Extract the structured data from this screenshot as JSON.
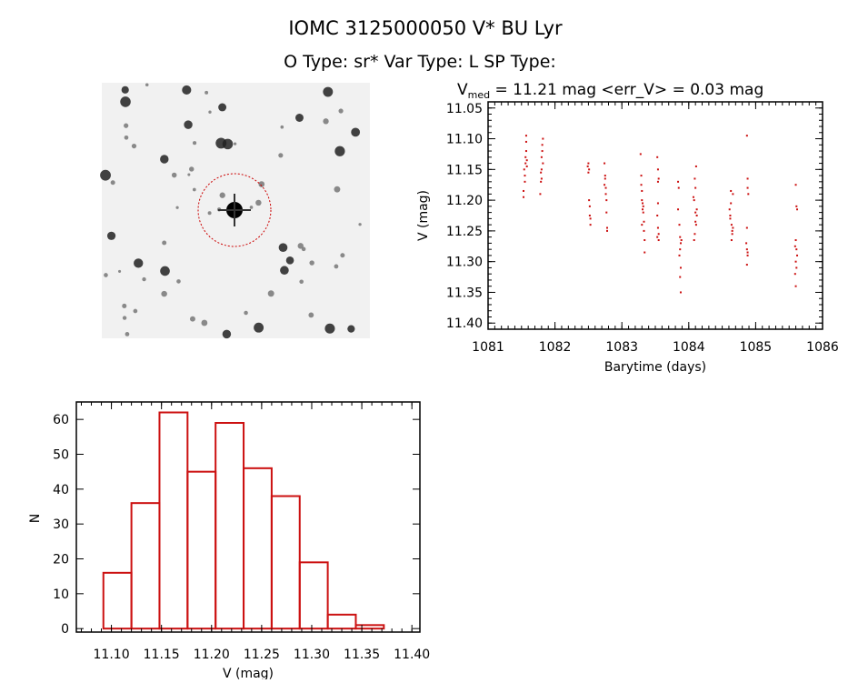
{
  "header": {
    "title": "IOMC 3125000050   V* BU Lyr",
    "subtitle": "O Type: sr*  Var Type: L  SP Type:"
  },
  "image_panel": {
    "marker_color": "#cc0000"
  },
  "chart_data": [
    {
      "type": "scatter",
      "title_main": "V",
      "title_sub": "med",
      "title_rest": " = 11.21 mag <err_V> = 0.03 mag",
      "xlabel": "Barytime (days)",
      "ylabel": "V (mag)",
      "xlim": [
        1081,
        1086
      ],
      "ylim": [
        11.41,
        11.04
      ],
      "y_reversed": true,
      "xticks": [
        "1081",
        "1082",
        "1083",
        "1084",
        "1085",
        "1086"
      ],
      "yticks": [
        "11.05",
        "11.10",
        "11.15",
        "11.20",
        "11.25",
        "11.30",
        "11.35",
        "11.40"
      ],
      "color": "#cc1111",
      "points": [
        [
          1081.53,
          11.195
        ],
        [
          1081.53,
          11.185
        ],
        [
          1081.54,
          11.15
        ],
        [
          1081.55,
          11.16
        ],
        [
          1081.56,
          11.13
        ],
        [
          1081.56,
          11.14
        ],
        [
          1081.57,
          11.12
        ],
        [
          1081.57,
          11.095
        ],
        [
          1081.58,
          11.145
        ],
        [
          1081.58,
          11.135
        ],
        [
          1081.55,
          11.17
        ],
        [
          1081.57,
          11.105
        ],
        [
          1081.78,
          11.19
        ],
        [
          1081.79,
          11.17
        ],
        [
          1081.79,
          11.155
        ],
        [
          1081.8,
          11.15
        ],
        [
          1081.8,
          11.13
        ],
        [
          1081.81,
          11.12
        ],
        [
          1081.81,
          11.11
        ],
        [
          1081.82,
          11.1
        ],
        [
          1081.82,
          11.14
        ],
        [
          1081.8,
          11.165
        ],
        [
          1082.49,
          11.145
        ],
        [
          1082.5,
          11.14
        ],
        [
          1082.5,
          11.155
        ],
        [
          1082.51,
          11.2
        ],
        [
          1082.52,
          11.21
        ],
        [
          1082.52,
          11.225
        ],
        [
          1082.53,
          11.24
        ],
        [
          1082.53,
          11.23
        ],
        [
          1082.51,
          11.15
        ],
        [
          1082.74,
          11.14
        ],
        [
          1082.75,
          11.16
        ],
        [
          1082.75,
          11.165
        ],
        [
          1082.76,
          11.18
        ],
        [
          1082.76,
          11.19
        ],
        [
          1082.77,
          11.2
        ],
        [
          1082.77,
          11.22
        ],
        [
          1082.78,
          11.245
        ],
        [
          1082.78,
          11.25
        ],
        [
          1082.74,
          11.175
        ],
        [
          1083.28,
          11.125
        ],
        [
          1083.29,
          11.16
        ],
        [
          1083.29,
          11.175
        ],
        [
          1083.3,
          11.185
        ],
        [
          1083.3,
          11.2
        ],
        [
          1083.31,
          11.205
        ],
        [
          1083.31,
          11.215
        ],
        [
          1083.32,
          11.22
        ],
        [
          1083.32,
          11.21
        ],
        [
          1083.33,
          11.235
        ],
        [
          1083.33,
          11.25
        ],
        [
          1083.34,
          11.265
        ],
        [
          1083.34,
          11.285
        ],
        [
          1083.3,
          11.24
        ],
        [
          1083.53,
          11.13
        ],
        [
          1083.54,
          11.15
        ],
        [
          1083.54,
          11.17
        ],
        [
          1083.55,
          11.165
        ],
        [
          1083.54,
          11.205
        ],
        [
          1083.53,
          11.225
        ],
        [
          1083.54,
          11.245
        ],
        [
          1083.55,
          11.255
        ],
        [
          1083.55,
          11.265
        ],
        [
          1083.53,
          11.26
        ],
        [
          1083.84,
          11.17
        ],
        [
          1083.85,
          11.18
        ],
        [
          1083.84,
          11.215
        ],
        [
          1083.86,
          11.24
        ],
        [
          1083.87,
          11.26
        ],
        [
          1083.88,
          11.27
        ],
        [
          1083.87,
          11.28
        ],
        [
          1083.86,
          11.29
        ],
        [
          1083.88,
          11.31
        ],
        [
          1083.87,
          11.325
        ],
        [
          1083.88,
          11.35
        ],
        [
          1083.89,
          11.265
        ],
        [
          1084.07,
          11.195
        ],
        [
          1084.08,
          11.2
        ],
        [
          1084.09,
          11.165
        ],
        [
          1084.1,
          11.18
        ],
        [
          1084.1,
          11.22
        ],
        [
          1084.11,
          11.145
        ],
        [
          1084.12,
          11.215
        ],
        [
          1084.11,
          11.24
        ],
        [
          1084.09,
          11.255
        ],
        [
          1084.08,
          11.265
        ],
        [
          1084.12,
          11.225
        ],
        [
          1084.1,
          11.235
        ],
        [
          1084.61,
          11.215
        ],
        [
          1084.62,
          11.225
        ],
        [
          1084.62,
          11.23
        ],
        [
          1084.63,
          11.185
        ],
        [
          1084.64,
          11.24
        ],
        [
          1084.65,
          11.25
        ],
        [
          1084.66,
          11.245
        ],
        [
          1084.64,
          11.265
        ],
        [
          1084.66,
          11.19
        ],
        [
          1084.63,
          11.205
        ],
        [
          1084.65,
          11.255
        ],
        [
          1084.87,
          11.095
        ],
        [
          1084.88,
          11.165
        ],
        [
          1084.88,
          11.18
        ],
        [
          1084.89,
          11.19
        ],
        [
          1084.87,
          11.245
        ],
        [
          1084.86,
          11.27
        ],
        [
          1084.87,
          11.28
        ],
        [
          1084.88,
          11.29
        ],
        [
          1084.87,
          11.305
        ],
        [
          1084.88,
          11.285
        ],
        [
          1085.6,
          11.175
        ],
        [
          1085.61,
          11.21
        ],
        [
          1085.62,
          11.215
        ],
        [
          1085.6,
          11.265
        ],
        [
          1085.59,
          11.275
        ],
        [
          1085.61,
          11.28
        ],
        [
          1085.62,
          11.29
        ],
        [
          1085.6,
          11.3
        ],
        [
          1085.61,
          11.31
        ],
        [
          1085.59,
          11.32
        ],
        [
          1085.6,
          11.34
        ]
      ]
    },
    {
      "type": "bar",
      "subtype": "histogram",
      "xlabel": "V (mag)",
      "ylabel": "N",
      "xlim": [
        11.065,
        11.408
      ],
      "ylim": [
        -1,
        65
      ],
      "xticks": [
        "11.10",
        "11.15",
        "11.20",
        "11.25",
        "11.30",
        "11.35",
        "11.40"
      ],
      "yticks": [
        "0",
        "10",
        "20",
        "30",
        "40",
        "50",
        "60"
      ],
      "bin_start": 11.092,
      "bin_width": 0.028,
      "values": [
        16,
        36,
        62,
        45,
        59,
        46,
        38,
        19,
        4,
        1
      ],
      "color": "#cc1111"
    }
  ]
}
